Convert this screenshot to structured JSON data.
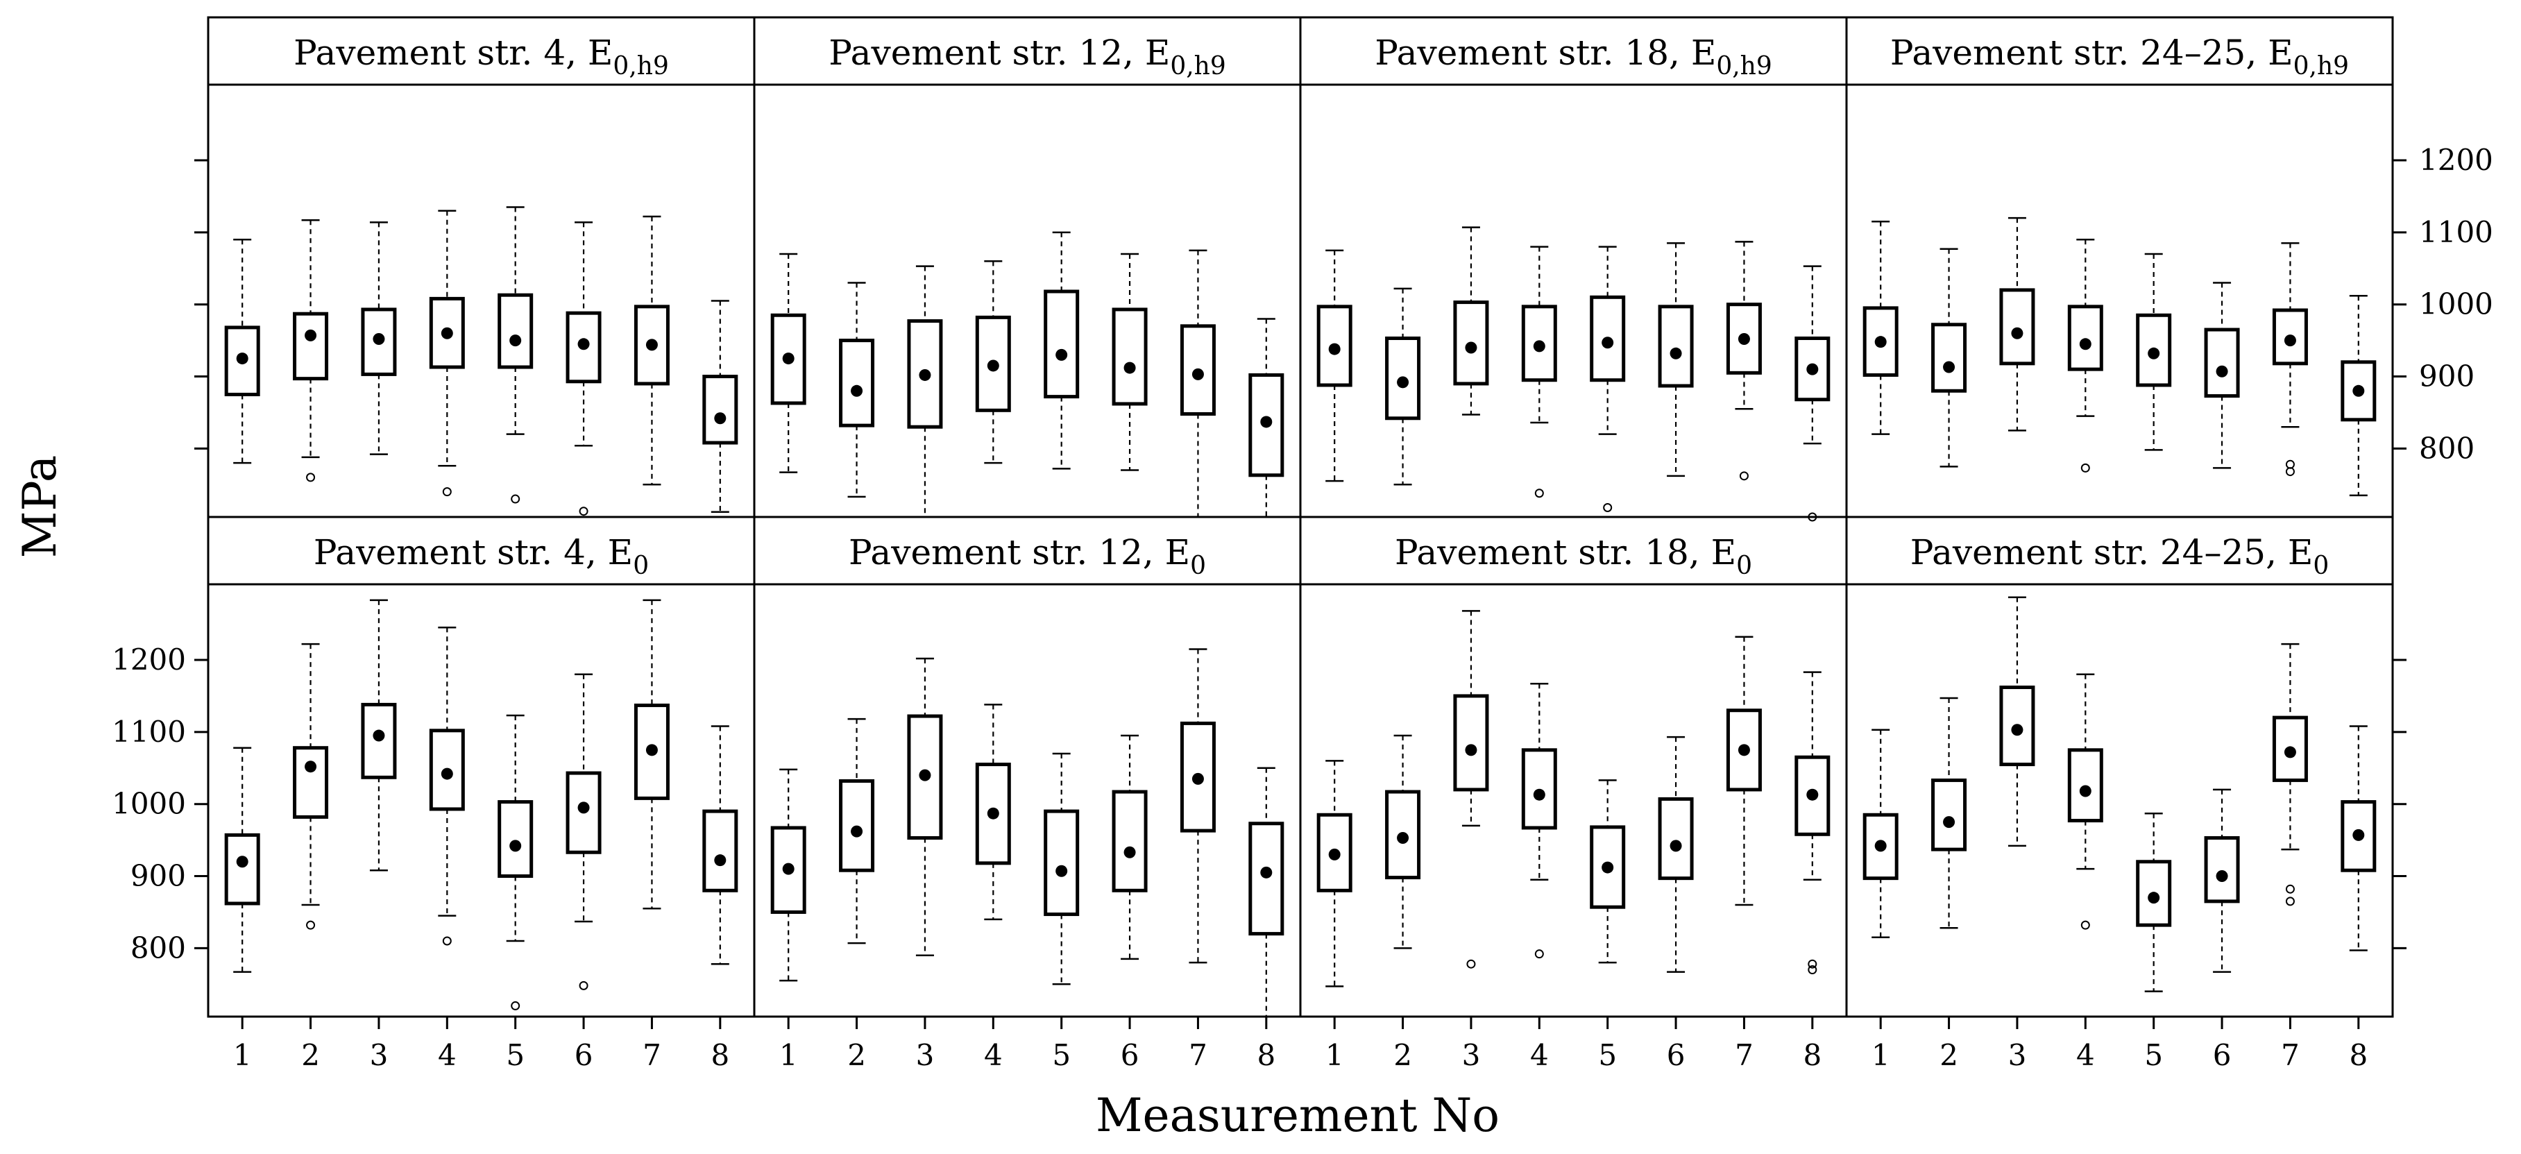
{
  "figure": {
    "ylabel": "MPa",
    "xlabel": "Measurement No",
    "y_ticks": [
      800,
      900,
      1000,
      1100,
      1200
    ],
    "x_ticks": [
      "1",
      "2",
      "3",
      "4",
      "5",
      "6",
      "7",
      "8"
    ]
  },
  "chart_data": [
    {
      "type": "box",
      "title": "Pavement str. 4,  E0,h9",
      "title_main": "Pavement str. 4,  E",
      "title_sub": "0,h9",
      "row": "top",
      "ylim": [
        705,
        1305
      ],
      "xlabel": "Measurement No",
      "ylabel": "MPa",
      "boxes": [
        {
          "x": 1,
          "whisker_low": 780,
          "q1": 875,
          "mean": 925,
          "q3": 968,
          "whisker_high": 1090,
          "outliers": []
        },
        {
          "x": 2,
          "whisker_low": 788,
          "q1": 897,
          "mean": 957,
          "q3": 987,
          "whisker_high": 1117,
          "outliers": [
            760
          ]
        },
        {
          "x": 3,
          "whisker_low": 792,
          "q1": 903,
          "mean": 952,
          "q3": 993,
          "whisker_high": 1114,
          "outliers": []
        },
        {
          "x": 4,
          "whisker_low": 776,
          "q1": 913,
          "mean": 960,
          "q3": 1008,
          "whisker_high": 1130,
          "outliers": [
            740
          ]
        },
        {
          "x": 5,
          "whisker_low": 820,
          "q1": 913,
          "mean": 950,
          "q3": 1013,
          "whisker_high": 1135,
          "outliers": [
            730
          ]
        },
        {
          "x": 6,
          "whisker_low": 804,
          "q1": 893,
          "mean": 945,
          "q3": 988,
          "whisker_high": 1114,
          "outliers": [
            713
          ]
        },
        {
          "x": 7,
          "whisker_low": 750,
          "q1": 890,
          "mean": 944,
          "q3": 997,
          "whisker_high": 1122,
          "outliers": []
        },
        {
          "x": 8,
          "whisker_low": 712,
          "q1": 808,
          "mean": 842,
          "q3": 900,
          "whisker_high": 1005,
          "outliers": []
        }
      ]
    },
    {
      "type": "box",
      "title": "Pavement str. 12, E0,h9",
      "title_main": "Pavement str. 12, E",
      "title_sub": "0,h9",
      "row": "top",
      "ylim": [
        705,
        1305
      ],
      "boxes": [
        {
          "x": 1,
          "whisker_low": 767,
          "q1": 863,
          "mean": 925,
          "q3": 985,
          "whisker_high": 1070,
          "outliers": []
        },
        {
          "x": 2,
          "whisker_low": 733,
          "q1": 832,
          "mean": 880,
          "q3": 950,
          "whisker_high": 1030,
          "outliers": []
        },
        {
          "x": 3,
          "whisker_low": 705,
          "q1": 830,
          "mean": 902,
          "q3": 977,
          "whisker_high": 1053,
          "outliers": []
        },
        {
          "x": 4,
          "whisker_low": 780,
          "q1": 853,
          "mean": 915,
          "q3": 982,
          "whisker_high": 1060,
          "outliers": []
        },
        {
          "x": 5,
          "whisker_low": 772,
          "q1": 872,
          "mean": 930,
          "q3": 1018,
          "whisker_high": 1100,
          "outliers": []
        },
        {
          "x": 6,
          "whisker_low": 770,
          "q1": 862,
          "mean": 912,
          "q3": 993,
          "whisker_high": 1070,
          "outliers": []
        },
        {
          "x": 7,
          "whisker_low": 705,
          "q1": 848,
          "mean": 903,
          "q3": 970,
          "whisker_high": 1075,
          "outliers": []
        },
        {
          "x": 8,
          "whisker_low": 705,
          "q1": 763,
          "mean": 837,
          "q3": 902,
          "whisker_high": 980,
          "outliers": []
        }
      ]
    },
    {
      "type": "box",
      "title": "Pavement str. 18, E0,h9",
      "title_main": "Pavement str. 18, E",
      "title_sub": "0,h9",
      "row": "top",
      "ylim": [
        705,
        1305
      ],
      "boxes": [
        {
          "x": 1,
          "whisker_low": 755,
          "q1": 888,
          "mean": 938,
          "q3": 997,
          "whisker_high": 1075,
          "outliers": []
        },
        {
          "x": 2,
          "whisker_low": 750,
          "q1": 842,
          "mean": 892,
          "q3": 953,
          "whisker_high": 1022,
          "outliers": []
        },
        {
          "x": 3,
          "whisker_low": 847,
          "q1": 890,
          "mean": 940,
          "q3": 1003,
          "whisker_high": 1107,
          "outliers": []
        },
        {
          "x": 4,
          "whisker_low": 836,
          "q1": 895,
          "mean": 942,
          "q3": 997,
          "whisker_high": 1080,
          "outliers": [
            738
          ]
        },
        {
          "x": 5,
          "whisker_low": 820,
          "q1": 895,
          "mean": 947,
          "q3": 1010,
          "whisker_high": 1080,
          "outliers": [
            718
          ]
        },
        {
          "x": 6,
          "whisker_low": 762,
          "q1": 887,
          "mean": 932,
          "q3": 997,
          "whisker_high": 1085,
          "outliers": []
        },
        {
          "x": 7,
          "whisker_low": 855,
          "q1": 905,
          "mean": 952,
          "q3": 1000,
          "whisker_high": 1087,
          "outliers": [
            762
          ]
        },
        {
          "x": 8,
          "whisker_low": 807,
          "q1": 868,
          "mean": 910,
          "q3": 953,
          "whisker_high": 1053,
          "outliers": [
            705
          ]
        }
      ]
    },
    {
      "type": "box",
      "title": "Pavement str. 24–25, E0,h9",
      "title_main": "Pavement str. 24–25, E",
      "title_sub": "0,h9",
      "row": "top",
      "ylim": [
        705,
        1305
      ],
      "boxes": [
        {
          "x": 1,
          "whisker_low": 820,
          "q1": 902,
          "mean": 948,
          "q3": 995,
          "whisker_high": 1115,
          "outliers": []
        },
        {
          "x": 2,
          "whisker_low": 775,
          "q1": 880,
          "mean": 913,
          "q3": 972,
          "whisker_high": 1077,
          "outliers": []
        },
        {
          "x": 3,
          "whisker_low": 825,
          "q1": 918,
          "mean": 960,
          "q3": 1020,
          "whisker_high": 1120,
          "outliers": []
        },
        {
          "x": 4,
          "whisker_low": 845,
          "q1": 910,
          "mean": 945,
          "q3": 997,
          "whisker_high": 1090,
          "outliers": [
            773
          ]
        },
        {
          "x": 5,
          "whisker_low": 798,
          "q1": 888,
          "mean": 932,
          "q3": 985,
          "whisker_high": 1070,
          "outliers": []
        },
        {
          "x": 6,
          "whisker_low": 773,
          "q1": 873,
          "mean": 907,
          "q3": 965,
          "whisker_high": 1030,
          "outliers": []
        },
        {
          "x": 7,
          "whisker_low": 830,
          "q1": 918,
          "mean": 950,
          "q3": 992,
          "whisker_high": 1085,
          "outliers": [
            768,
            778
          ]
        },
        {
          "x": 8,
          "whisker_low": 735,
          "q1": 840,
          "mean": 880,
          "q3": 920,
          "whisker_high": 1012,
          "outliers": []
        }
      ]
    },
    {
      "type": "box",
      "title": "Pavement str. 4,  E0",
      "title_main": "Pavement str. 4,  E",
      "title_sub": "0",
      "row": "bottom",
      "ylim": [
        705,
        1305
      ],
      "boxes": [
        {
          "x": 1,
          "whisker_low": 767,
          "q1": 862,
          "mean": 920,
          "q3": 957,
          "whisker_high": 1078,
          "outliers": []
        },
        {
          "x": 2,
          "whisker_low": 860,
          "q1": 982,
          "mean": 1052,
          "q3": 1078,
          "whisker_high": 1222,
          "outliers": [
            832
          ]
        },
        {
          "x": 3,
          "whisker_low": 908,
          "q1": 1037,
          "mean": 1095,
          "q3": 1138,
          "whisker_high": 1283,
          "outliers": []
        },
        {
          "x": 4,
          "whisker_low": 845,
          "q1": 993,
          "mean": 1042,
          "q3": 1102,
          "whisker_high": 1245,
          "outliers": [
            810
          ]
        },
        {
          "x": 5,
          "whisker_low": 810,
          "q1": 900,
          "mean": 942,
          "q3": 1003,
          "whisker_high": 1123,
          "outliers": [
            720
          ]
        },
        {
          "x": 6,
          "whisker_low": 837,
          "q1": 933,
          "mean": 995,
          "q3": 1043,
          "whisker_high": 1180,
          "outliers": [
            748
          ]
        },
        {
          "x": 7,
          "whisker_low": 855,
          "q1": 1008,
          "mean": 1075,
          "q3": 1137,
          "whisker_high": 1283,
          "outliers": []
        },
        {
          "x": 8,
          "whisker_low": 778,
          "q1": 880,
          "mean": 922,
          "q3": 990,
          "whisker_high": 1108,
          "outliers": []
        }
      ]
    },
    {
      "type": "box",
      "title": "Pavement str. 12, E0",
      "title_main": "Pavement str. 12, E",
      "title_sub": "0",
      "row": "bottom",
      "ylim": [
        705,
        1305
      ],
      "boxes": [
        {
          "x": 1,
          "whisker_low": 755,
          "q1": 850,
          "mean": 910,
          "q3": 967,
          "whisker_high": 1048,
          "outliers": []
        },
        {
          "x": 2,
          "whisker_low": 807,
          "q1": 908,
          "mean": 962,
          "q3": 1032,
          "whisker_high": 1118,
          "outliers": []
        },
        {
          "x": 3,
          "whisker_low": 790,
          "q1": 953,
          "mean": 1040,
          "q3": 1122,
          "whisker_high": 1202,
          "outliers": []
        },
        {
          "x": 4,
          "whisker_low": 840,
          "q1": 918,
          "mean": 987,
          "q3": 1055,
          "whisker_high": 1138,
          "outliers": []
        },
        {
          "x": 5,
          "whisker_low": 750,
          "q1": 847,
          "mean": 907,
          "q3": 990,
          "whisker_high": 1070,
          "outliers": []
        },
        {
          "x": 6,
          "whisker_low": 785,
          "q1": 880,
          "mean": 933,
          "q3": 1017,
          "whisker_high": 1095,
          "outliers": []
        },
        {
          "x": 7,
          "whisker_low": 780,
          "q1": 963,
          "mean": 1035,
          "q3": 1112,
          "whisker_high": 1215,
          "outliers": []
        },
        {
          "x": 8,
          "whisker_low": 705,
          "q1": 820,
          "mean": 905,
          "q3": 973,
          "whisker_high": 1050,
          "outliers": []
        }
      ]
    },
    {
      "type": "box",
      "title": "Pavement str. 18, E0",
      "title_main": "Pavement str. 18, E",
      "title_sub": "0",
      "row": "bottom",
      "ylim": [
        705,
        1305
      ],
      "boxes": [
        {
          "x": 1,
          "whisker_low": 747,
          "q1": 880,
          "mean": 930,
          "q3": 985,
          "whisker_high": 1060,
          "outliers": []
        },
        {
          "x": 2,
          "whisker_low": 800,
          "q1": 898,
          "mean": 953,
          "q3": 1017,
          "whisker_high": 1095,
          "outliers": []
        },
        {
          "x": 3,
          "whisker_low": 970,
          "q1": 1020,
          "mean": 1075,
          "q3": 1150,
          "whisker_high": 1268,
          "outliers": [
            778
          ]
        },
        {
          "x": 4,
          "whisker_low": 895,
          "q1": 967,
          "mean": 1013,
          "q3": 1075,
          "whisker_high": 1167,
          "outliers": [
            792
          ]
        },
        {
          "x": 5,
          "whisker_low": 780,
          "q1": 857,
          "mean": 912,
          "q3": 968,
          "whisker_high": 1033,
          "outliers": []
        },
        {
          "x": 6,
          "whisker_low": 767,
          "q1": 897,
          "mean": 942,
          "q3": 1007,
          "whisker_high": 1093,
          "outliers": []
        },
        {
          "x": 7,
          "whisker_low": 860,
          "q1": 1020,
          "mean": 1075,
          "q3": 1130,
          "whisker_high": 1232,
          "outliers": []
        },
        {
          "x": 8,
          "whisker_low": 895,
          "q1": 958,
          "mean": 1013,
          "q3": 1065,
          "whisker_high": 1183,
          "outliers": [
            770,
            778
          ]
        }
      ]
    },
    {
      "type": "box",
      "title": "Pavement str. 24–25, E0",
      "title_main": "Pavement str. 24–25, E",
      "title_sub": "0",
      "row": "bottom",
      "ylim": [
        705,
        1305
      ],
      "boxes": [
        {
          "x": 1,
          "whisker_low": 815,
          "q1": 897,
          "mean": 942,
          "q3": 985,
          "whisker_high": 1103,
          "outliers": []
        },
        {
          "x": 2,
          "whisker_low": 828,
          "q1": 937,
          "mean": 975,
          "q3": 1033,
          "whisker_high": 1147,
          "outliers": []
        },
        {
          "x": 3,
          "whisker_low": 942,
          "q1": 1055,
          "mean": 1103,
          "q3": 1162,
          "whisker_high": 1287,
          "outliers": []
        },
        {
          "x": 4,
          "whisker_low": 910,
          "q1": 977,
          "mean": 1018,
          "q3": 1075,
          "whisker_high": 1180,
          "outliers": [
            832
          ]
        },
        {
          "x": 5,
          "whisker_low": 740,
          "q1": 832,
          "mean": 870,
          "q3": 920,
          "whisker_high": 987,
          "outliers": []
        },
        {
          "x": 6,
          "whisker_low": 767,
          "q1": 865,
          "mean": 900,
          "q3": 953,
          "whisker_high": 1020,
          "outliers": []
        },
        {
          "x": 7,
          "whisker_low": 937,
          "q1": 1033,
          "mean": 1072,
          "q3": 1120,
          "whisker_high": 1222,
          "outliers": [
            865,
            882
          ]
        },
        {
          "x": 8,
          "whisker_low": 797,
          "q1": 908,
          "mean": 957,
          "q3": 1003,
          "whisker_high": 1108,
          "outliers": []
        }
      ]
    }
  ]
}
